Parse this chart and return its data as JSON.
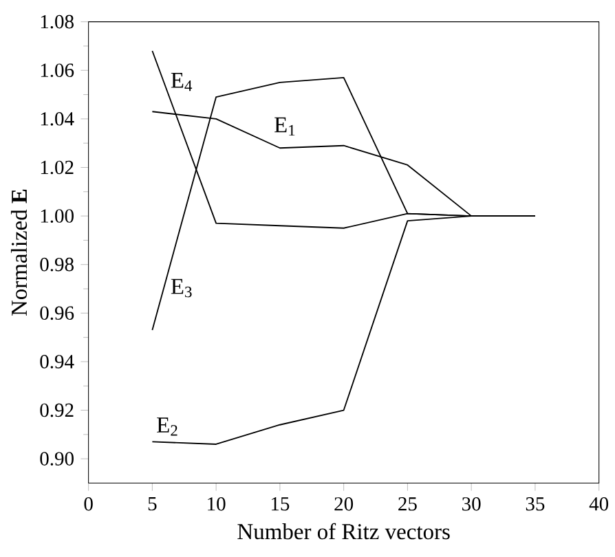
{
  "chart_data": {
    "type": "line",
    "xlabel": "Number of Ritz vectors",
    "ylabel": "Normalized **E**",
    "x": [
      5,
      10,
      15,
      20,
      25,
      30,
      35
    ],
    "series": [
      {
        "name": "E$_{1}$",
        "color": "#000000",
        "values": [
          1.043,
          1.04,
          1.028,
          1.029,
          1.021,
          1.0,
          1.0
        ]
      },
      {
        "name": "E$_{2}$",
        "color": "#000000",
        "values": [
          0.907,
          0.906,
          0.914,
          0.92,
          0.998,
          1.0,
          1.0
        ]
      },
      {
        "name": "E$_{3}$",
        "color": "#000000",
        "values": [
          0.953,
          1.049,
          1.055,
          1.057,
          1.001,
          1.0,
          1.0
        ]
      },
      {
        "name": "E$_{4}$",
        "color": "#000000",
        "values": [
          1.068,
          0.997,
          0.996,
          0.995,
          1.001,
          1.0,
          1.0
        ]
      }
    ],
    "xlim": [
      0,
      40
    ],
    "ylim": [
      0.89,
      1.08
    ],
    "xticks": [
      0,
      5,
      10,
      15,
      20,
      25,
      30,
      35,
      40
    ],
    "yticks": [
      {
        "value": 0.9,
        "label": "0.90"
      },
      {
        "value": 0.92,
        "label": "0.92"
      },
      {
        "value": 0.94,
        "label": "0.94"
      },
      {
        "value": 0.96,
        "label": "0.96"
      },
      {
        "value": 0.98,
        "label": "0.98"
      },
      {
        "value": 1.0,
        "label": "1.00"
      },
      {
        "value": 1.02,
        "label": "1.02"
      },
      {
        "value": 1.04,
        "label": "1.04"
      },
      {
        "value": 1.06,
        "label": "1.06"
      },
      {
        "value": 1.08,
        "label": "1.08"
      }
    ],
    "grid": false,
    "legend": false,
    "marker": "none",
    "line_style": "solid"
  }
}
